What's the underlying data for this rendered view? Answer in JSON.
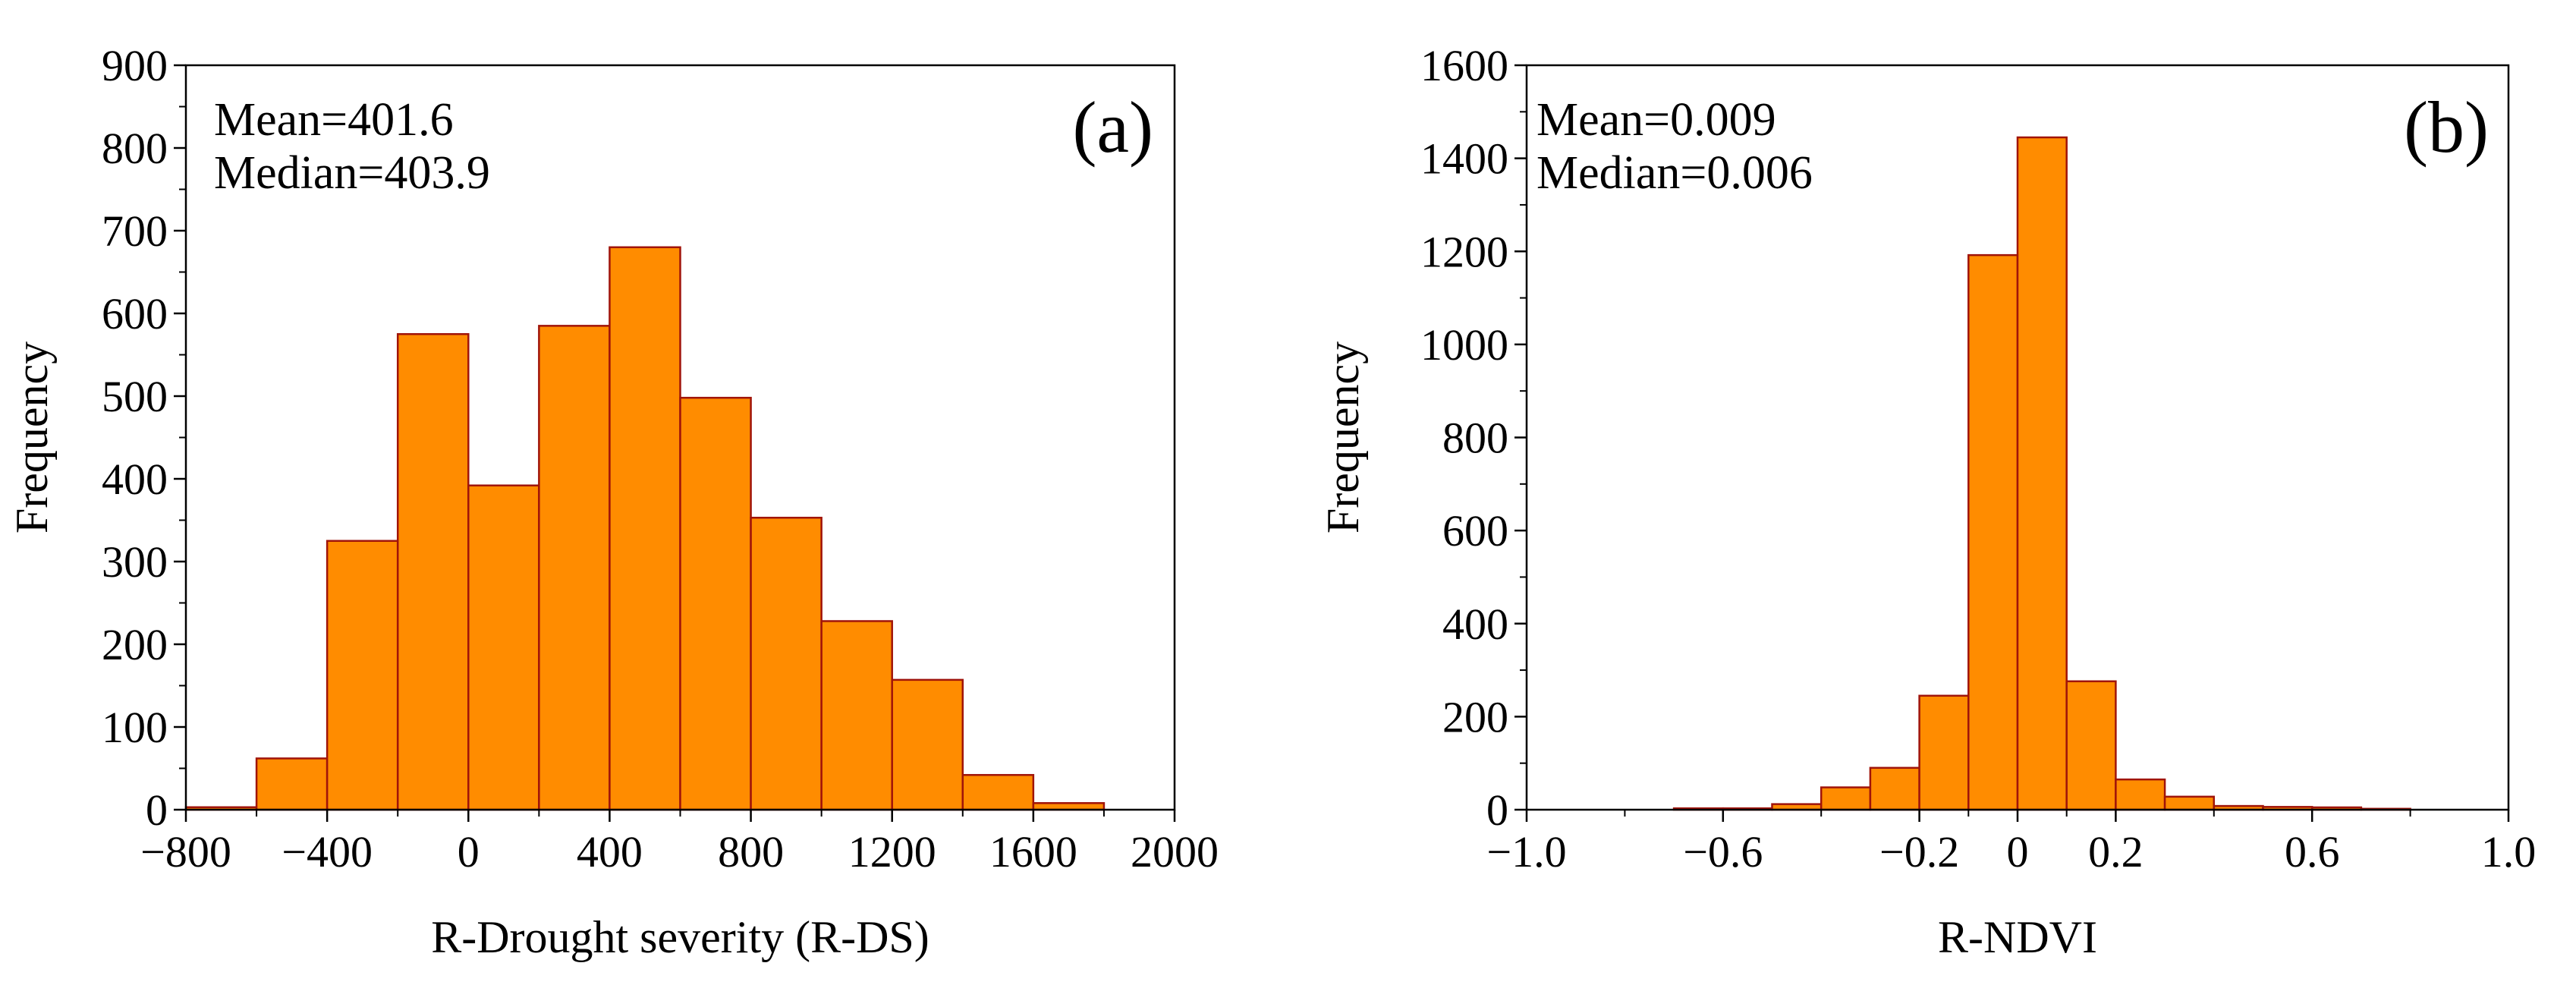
{
  "chart_data": [
    {
      "type": "bar",
      "subtype": "histogram",
      "panel_label": "(a)",
      "annotations": [
        "Mean=401.6",
        "Median=403.9"
      ],
      "xlabel": "R-Drought severity (R-DS)",
      "ylabel": "Frequency",
      "xlim": [
        -800,
        2000
      ],
      "ylim": [
        0,
        900
      ],
      "xticks": [
        -800,
        -400,
        0,
        400,
        800,
        1200,
        1600,
        2000
      ],
      "xtick_labels": [
        "−800",
        "−400",
        "0",
        "400",
        "800",
        "1200",
        "1600",
        "2000"
      ],
      "yticks": [
        0,
        100,
        200,
        300,
        400,
        500,
        600,
        700,
        800,
        900
      ],
      "ytick_labels": [
        "0",
        "100",
        "200",
        "300",
        "400",
        "500",
        "600",
        "700",
        "800",
        "900"
      ],
      "bin_edges": [
        -800,
        -600,
        -400,
        -200,
        0,
        200,
        400,
        600,
        800,
        1000,
        1200,
        1400,
        1600,
        1800
      ],
      "values": [
        3,
        62,
        325,
        575,
        392,
        585,
        680,
        498,
        353,
        228,
        157,
        42,
        8
      ],
      "bar_color": "#FF8C00",
      "edge_color": "#A0140A"
    },
    {
      "type": "bar",
      "subtype": "histogram",
      "panel_label": "(b)",
      "annotations": [
        "Mean=0.009",
        "Median=0.006"
      ],
      "xlabel": "R-NDVI",
      "ylabel": "Frequency",
      "xlim": [
        -1.0,
        1.0
      ],
      "ylim": [
        0,
        1600
      ],
      "xticks": [
        -1.0,
        -0.6,
        -0.2,
        0,
        0.2,
        0.6,
        1.0
      ],
      "xtick_labels": [
        "−1.0",
        "−0.6",
        "−0.2",
        "0",
        "0.2",
        "0.6",
        "1.0"
      ],
      "yticks": [
        0,
        200,
        400,
        600,
        800,
        1000,
        1200,
        1400,
        1600
      ],
      "ytick_labels": [
        "0",
        "200",
        "400",
        "600",
        "800",
        "1000",
        "1200",
        "1400",
        "1600"
      ],
      "bin_edges": [
        -0.7,
        -0.6,
        -0.5,
        -0.4,
        -0.3,
        -0.2,
        -0.1,
        0,
        0.1,
        0.2,
        0.3,
        0.4,
        0.5,
        0.6,
        0.7,
        0.8
      ],
      "values": [
        3,
        3,
        12,
        48,
        90,
        245,
        1192,
        1445,
        276,
        65,
        28,
        8,
        6,
        5,
        2
      ],
      "bar_color": "#FF8C00",
      "edge_color": "#A0140A"
    }
  ]
}
